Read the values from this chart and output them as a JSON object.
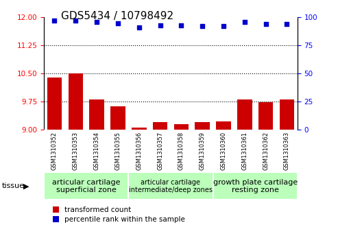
{
  "title": "GDS5434 / 10798492",
  "samples": [
    "GSM1310352",
    "GSM1310353",
    "GSM1310354",
    "GSM1310355",
    "GSM1310356",
    "GSM1310357",
    "GSM1310358",
    "GSM1310359",
    "GSM1310360",
    "GSM1310361",
    "GSM1310362",
    "GSM1310363"
  ],
  "bar_values": [
    10.4,
    10.5,
    9.8,
    9.62,
    9.05,
    9.2,
    9.15,
    9.2,
    9.22,
    9.8,
    9.73,
    9.8
  ],
  "percentile_values": [
    97,
    97,
    96,
    95,
    91,
    93,
    93,
    92,
    92,
    96,
    94,
    94
  ],
  "ylim_left": [
    9,
    12
  ],
  "ylim_right": [
    0,
    100
  ],
  "yticks_left": [
    9,
    9.75,
    10.5,
    11.25,
    12
  ],
  "yticks_right": [
    0,
    25,
    50,
    75,
    100
  ],
  "grid_lines": [
    9.75,
    10.5,
    11.25
  ],
  "bar_color": "#cc0000",
  "dot_color": "#0000cc",
  "bar_bottom": 9,
  "tissue_groups": [
    {
      "label": "articular cartilage\nsuperficial zone",
      "start": 0,
      "end": 3,
      "fontsize": 8
    },
    {
      "label": "articular cartilage\nintermediate/deep zones",
      "start": 4,
      "end": 7,
      "fontsize": 7
    },
    {
      "label": "growth plate cartilage\nresting zone",
      "start": 8,
      "end": 11,
      "fontsize": 8
    }
  ],
  "tissue_box_color": "#bbffbb",
  "tissue_label": "tissue",
  "legend_bar_label": "transformed count",
  "legend_dot_label": "percentile rank within the sample",
  "title_fontsize": 11,
  "tick_fontsize": 7.5,
  "sample_fontsize": 6,
  "xtick_bg_color": "#cccccc"
}
